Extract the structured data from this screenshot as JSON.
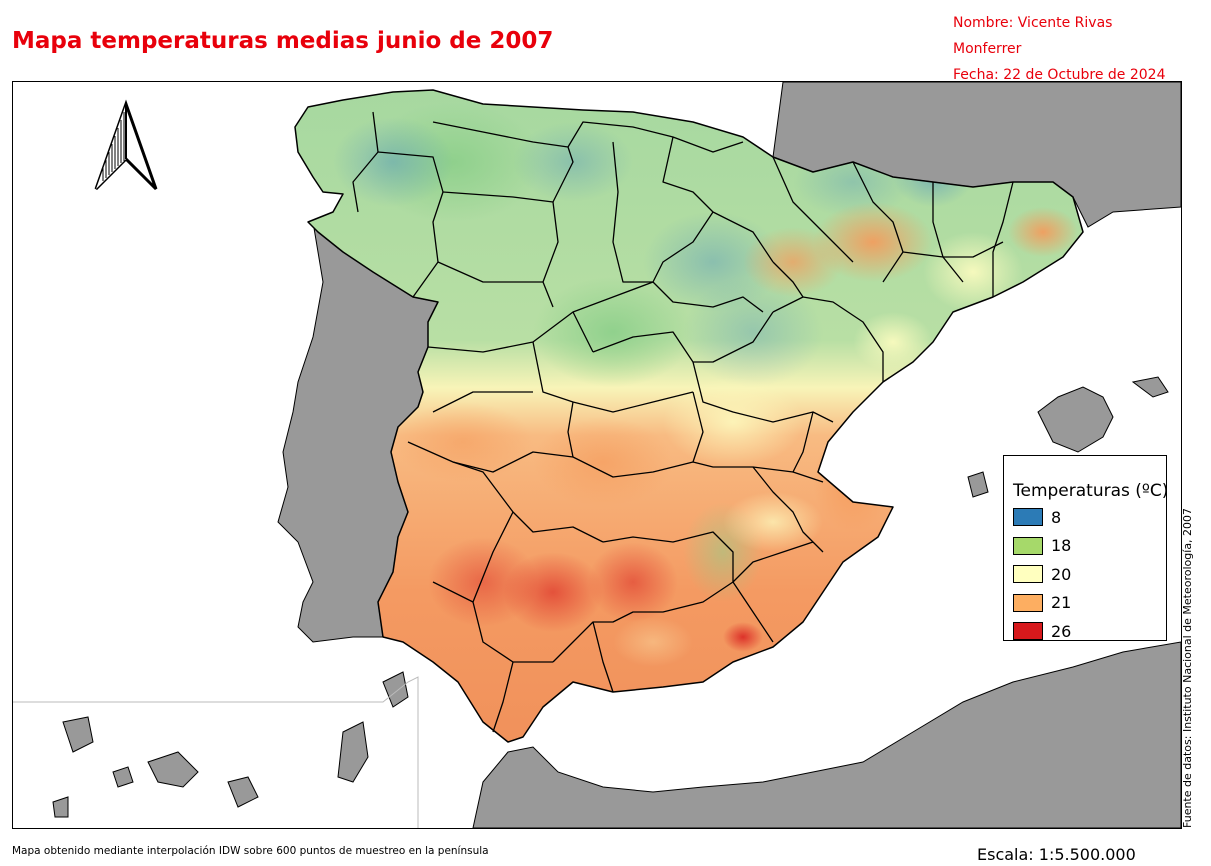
{
  "title": "Mapa temperaturas medias junio de 2007",
  "author": {
    "name": "Nombre: Vicente Rivas Monferrer",
    "date": "Fecha: 22 de Octubre de 2024"
  },
  "source": "Fuente de datos: Instituto Nacional de Meteorología, 2007",
  "footnote": "Mapa obtenido mediante interpolación IDW sobre 600 puntos de muestreo en la península",
  "scale": "Escala:  1:5.500.000",
  "legend": {
    "title": "Temperaturas (ºC)",
    "items": [
      {
        "label": "8",
        "color": "#2c7bb6"
      },
      {
        "label": "18",
        "color": "#a6d96a"
      },
      {
        "label": "20",
        "color": "#ffffbf"
      },
      {
        "label": "21",
        "color": "#fdae61"
      },
      {
        "label": "26",
        "color": "#d7191c"
      }
    ]
  },
  "colors": {
    "accent": "#e8000b",
    "land_other": "#999999",
    "sea": "#ffffff",
    "north_arrow": "#000000"
  }
}
